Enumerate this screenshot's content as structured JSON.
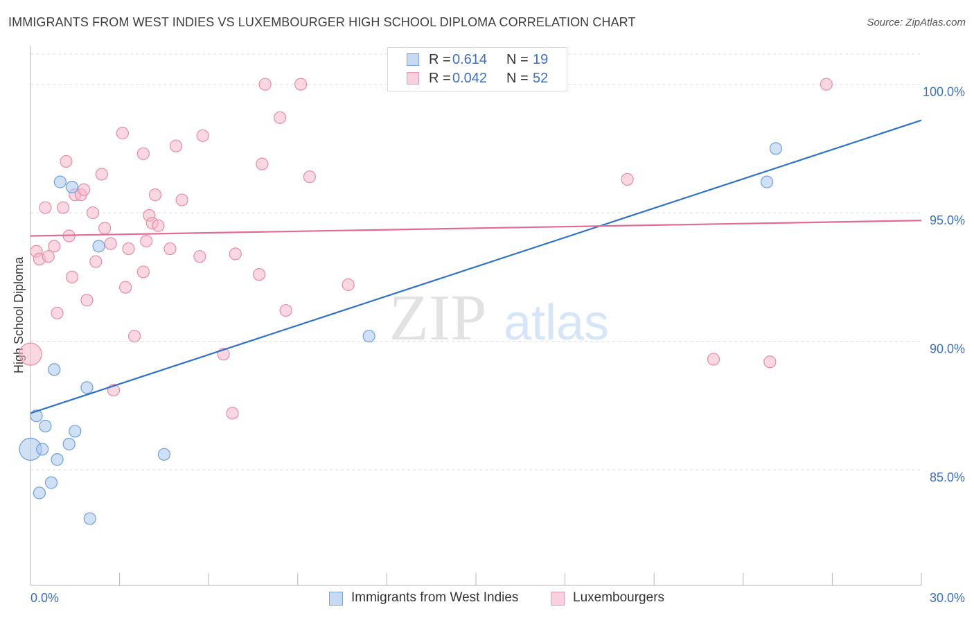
{
  "header": {
    "title": "IMMIGRANTS FROM WEST INDIES VS LUXEMBOURGER HIGH SCHOOL DIPLOMA CORRELATION CHART",
    "source": "Source: ZipAtlas.com"
  },
  "watermark": {
    "part1": "ZIP",
    "part2": "atlas"
  },
  "legend": {
    "rows": [
      {
        "r_label": "R =",
        "r_value": "0.614",
        "n_label": "N =",
        "n_value": "19",
        "color": "#a9c8ef"
      },
      {
        "r_label": "R =",
        "r_value": "0.042",
        "n_label": "N =",
        "n_value": "52",
        "color": "#f5b8cb"
      }
    ]
  },
  "bottom_legend": [
    {
      "label": "Immigrants from West Indies",
      "color": "#a9c8ef"
    },
    {
      "label": "Luxembourgers",
      "color": "#f5b8cb"
    }
  ],
  "chart_data": {
    "type": "scatter",
    "title": "IMMIGRANTS FROM WEST INDIES VS LUXEMBOURGER HIGH SCHOOL DIPLOMA CORRELATION CHART",
    "xlabel": "",
    "ylabel": "High School Diploma",
    "xlim": [
      0,
      30
    ],
    "ylim": [
      80.5,
      101.5
    ],
    "x_tick_labels": [
      "0.0%",
      "30.0%"
    ],
    "y_ticks": [
      85,
      90,
      95,
      100
    ],
    "y_tick_labels": [
      "85.0%",
      "90.0%",
      "95.0%",
      "100.0%"
    ],
    "grid": true,
    "colors": {
      "blue_fill": "#a9c8ef",
      "blue_stroke": "#6e9fd8",
      "blue_line": "#2f72c8",
      "pink_fill": "#f5b8cb",
      "pink_stroke": "#e88aa8",
      "pink_line": "#e26a94",
      "tick_label": "#3a6fc2"
    },
    "series": [
      {
        "name": "Immigrants from West Indies",
        "r": 0.614,
        "n": 19,
        "points": [
          [
            0.0,
            85.8
          ],
          [
            0.2,
            87.1
          ],
          [
            0.3,
            84.1
          ],
          [
            0.4,
            85.8
          ],
          [
            0.5,
            86.7
          ],
          [
            0.7,
            84.5
          ],
          [
            0.8,
            88.9
          ],
          [
            0.9,
            85.4
          ],
          [
            1.0,
            96.2
          ],
          [
            1.3,
            86.0
          ],
          [
            1.4,
            96.0
          ],
          [
            1.5,
            86.5
          ],
          [
            1.9,
            88.2
          ],
          [
            2.0,
            83.1
          ],
          [
            2.3,
            93.7
          ],
          [
            4.5,
            85.6
          ],
          [
            11.4,
            90.2
          ],
          [
            24.8,
            96.2
          ],
          [
            25.1,
            97.5
          ]
        ],
        "trend": {
          "x": [
            0.0,
            30.0
          ],
          "y": [
            87.2,
            98.6
          ]
        }
      },
      {
        "name": "Luxembourgers",
        "r": 0.042,
        "n": 52,
        "points": [
          [
            0.0,
            89.5
          ],
          [
            0.2,
            93.5
          ],
          [
            0.3,
            93.2
          ],
          [
            0.5,
            95.2
          ],
          [
            0.6,
            93.3
          ],
          [
            0.8,
            93.7
          ],
          [
            0.9,
            91.1
          ],
          [
            1.1,
            95.2
          ],
          [
            1.2,
            97.0
          ],
          [
            1.3,
            94.1
          ],
          [
            1.4,
            92.5
          ],
          [
            1.5,
            95.7
          ],
          [
            1.7,
            95.7
          ],
          [
            1.8,
            95.9
          ],
          [
            1.9,
            91.6
          ],
          [
            2.1,
            95.0
          ],
          [
            2.2,
            93.1
          ],
          [
            2.4,
            96.5
          ],
          [
            2.5,
            94.4
          ],
          [
            2.7,
            93.8
          ],
          [
            2.8,
            88.1
          ],
          [
            3.1,
            98.1
          ],
          [
            3.2,
            92.1
          ],
          [
            3.3,
            93.6
          ],
          [
            3.5,
            90.2
          ],
          [
            3.8,
            92.7
          ],
          [
            3.8,
            97.3
          ],
          [
            3.9,
            93.9
          ],
          [
            4.0,
            94.9
          ],
          [
            4.1,
            94.6
          ],
          [
            4.2,
            95.7
          ],
          [
            4.3,
            94.5
          ],
          [
            4.7,
            93.6
          ],
          [
            4.9,
            97.6
          ],
          [
            5.1,
            95.5
          ],
          [
            5.7,
            93.3
          ],
          [
            5.8,
            98.0
          ],
          [
            6.5,
            89.5
          ],
          [
            6.8,
            87.2
          ],
          [
            6.9,
            93.4
          ],
          [
            7.7,
            92.6
          ],
          [
            7.8,
            96.9
          ],
          [
            7.9,
            100.0
          ],
          [
            8.4,
            98.7
          ],
          [
            8.6,
            91.2
          ],
          [
            9.1,
            100.0
          ],
          [
            9.4,
            96.4
          ],
          [
            10.7,
            92.2
          ],
          [
            20.1,
            96.3
          ],
          [
            23.0,
            89.3
          ],
          [
            24.9,
            89.2
          ],
          [
            26.8,
            100.0
          ]
        ],
        "trend": {
          "x": [
            0.0,
            30.0
          ],
          "y": [
            94.1,
            94.7
          ]
        }
      }
    ]
  }
}
